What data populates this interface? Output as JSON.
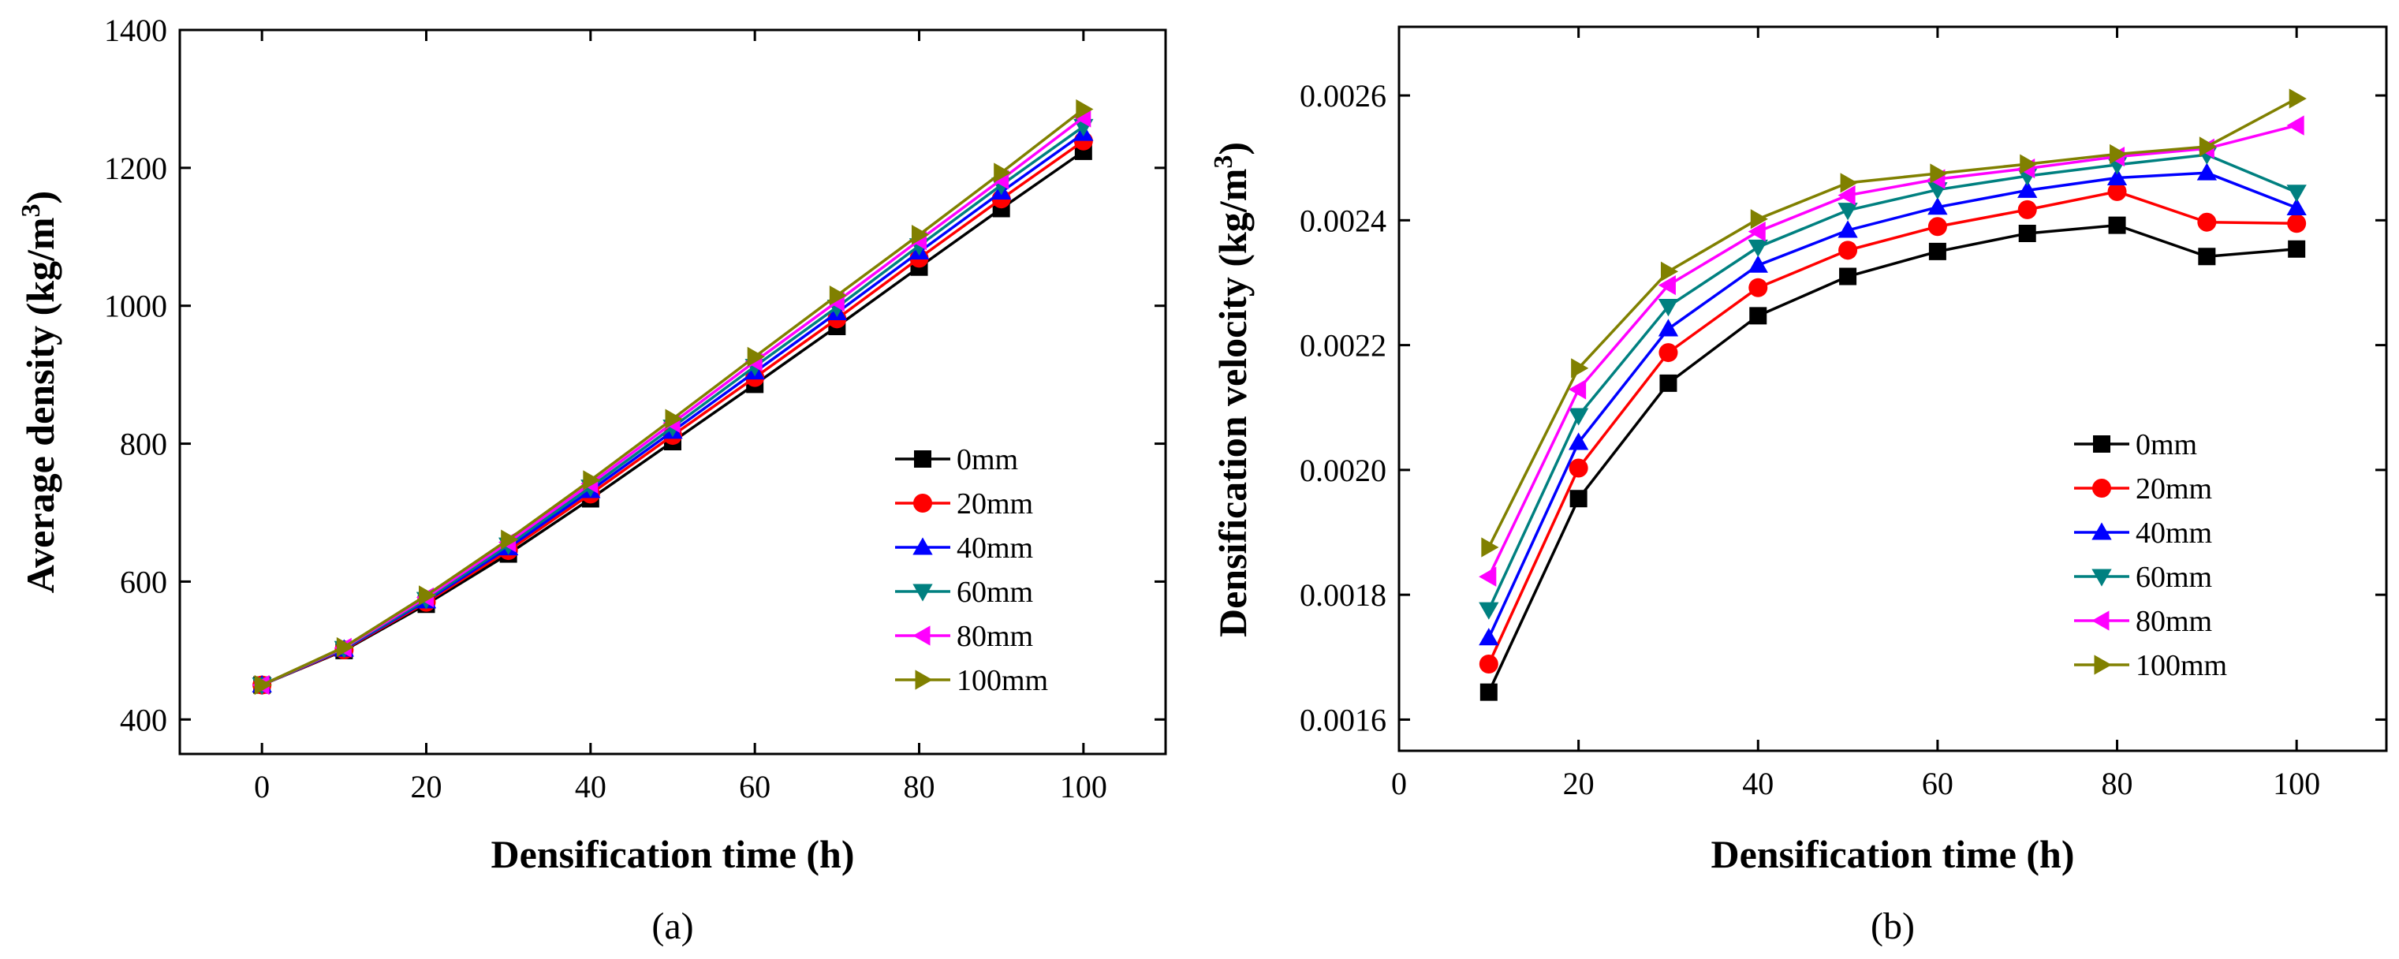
{
  "chart_data": [
    {
      "type": "line",
      "panel_label": "(a)",
      "title": "",
      "xlabel": "Densification time (h)",
      "ylabel": "Average density (kg/m",
      "ylabel_sup": "3",
      "ylabel_end": ")",
      "xlim": [
        -10,
        110
      ],
      "ylim": [
        350,
        1400
      ],
      "x_ticks": [
        0,
        20,
        40,
        60,
        80,
        100
      ],
      "y_ticks": [
        400,
        600,
        800,
        1000,
        1200,
        1400
      ],
      "x_tick_labels": [
        "0",
        "20",
        "40",
        "60",
        "80",
        "100"
      ],
      "y_tick_labels": [
        "400",
        "600",
        "800",
        "1000",
        "1200",
        "1400"
      ],
      "grid": false,
      "legend_position": "lower-right",
      "x": [
        0,
        10,
        20,
        30,
        40,
        50,
        60,
        70,
        80,
        90,
        100
      ],
      "series": [
        {
          "name": "0mm",
          "color": "#000000",
          "marker": "square",
          "values": [
            450,
            500,
            567,
            640,
            720,
            803,
            886,
            970,
            1056,
            1141,
            1224
          ]
        },
        {
          "name": "20mm",
          "color": "#ff0000",
          "marker": "circle",
          "values": [
            450,
            501,
            570,
            645,
            727,
            812,
            896,
            981,
            1069,
            1155,
            1239
          ]
        },
        {
          "name": "40mm",
          "color": "#0000ff",
          "marker": "triangle-up",
          "values": [
            450,
            502,
            572,
            649,
            732,
            818,
            904,
            990,
            1078,
            1165,
            1250
          ]
        },
        {
          "name": "60mm",
          "color": "#008080",
          "marker": "triangle-down",
          "values": [
            450,
            503,
            574,
            653,
            737,
            824,
            912,
            998,
            1087,
            1175,
            1260
          ]
        },
        {
          "name": "80mm",
          "color": "#ff00ff",
          "marker": "triangle-left",
          "values": [
            450,
            504,
            577,
            657,
            742,
            830,
            919,
            1006,
            1095,
            1183,
            1273
          ]
        },
        {
          "name": "100mm",
          "color": "#808000",
          "marker": "triangle-right",
          "values": [
            450,
            505,
            580,
            661,
            747,
            836,
            926,
            1015,
            1103,
            1193,
            1285
          ]
        }
      ]
    },
    {
      "type": "line",
      "panel_label": "(b)",
      "title": "",
      "xlabel": "Densification time (h)",
      "ylabel": "Densification velocity (kg/m",
      "ylabel_sup": "3",
      "ylabel_end": ")",
      "xlim": [
        0,
        110
      ],
      "ylim": [
        0.00155,
        0.00271
      ],
      "x_ticks": [
        0,
        20,
        40,
        60,
        80,
        100
      ],
      "y_ticks": [
        0.0016,
        0.0018,
        0.002,
        0.0022,
        0.0024,
        0.0026
      ],
      "x_tick_labels": [
        "0",
        "20",
        "40",
        "60",
        "80",
        "100"
      ],
      "y_tick_labels": [
        "0.0016",
        "0.0018",
        "0.0020",
        "0.0022",
        "0.0024",
        "0.0026"
      ],
      "grid": false,
      "legend_position": "lower-right",
      "x": [
        10,
        20,
        30,
        40,
        50,
        60,
        70,
        80,
        90,
        100
      ],
      "series": [
        {
          "name": "0mm",
          "color": "#000000",
          "marker": "square",
          "values": [
            0.001644,
            0.001954,
            0.002139,
            0.002247,
            0.00231,
            0.00235,
            0.002379,
            0.002392,
            0.002342,
            0.002354
          ]
        },
        {
          "name": "20mm",
          "color": "#ff0000",
          "marker": "circle",
          "values": [
            0.001689,
            0.002003,
            0.002188,
            0.002292,
            0.002352,
            0.00239,
            0.002417,
            0.002446,
            0.002397,
            0.002395
          ]
        },
        {
          "name": "40mm",
          "color": "#0000ff",
          "marker": "triangle-up",
          "values": [
            0.001731,
            0.002044,
            0.002226,
            0.002328,
            0.002384,
            0.002421,
            0.002448,
            0.002468,
            0.002476,
            0.00242
          ]
        },
        {
          "name": "60mm",
          "color": "#008080",
          "marker": "triangle-down",
          "values": [
            0.001776,
            0.002087,
            0.002262,
            0.002357,
            0.002416,
            0.002449,
            0.002471,
            0.002489,
            0.002505,
            0.002445
          ]
        },
        {
          "name": "80mm",
          "color": "#ff00ff",
          "marker": "triangle-left",
          "values": [
            0.001829,
            0.002129,
            0.002296,
            0.002382,
            0.00244,
            0.002466,
            0.002483,
            0.002502,
            0.002515,
            0.002552
          ]
        },
        {
          "name": "100mm",
          "color": "#808000",
          "marker": "triangle-right",
          "values": [
            0.001876,
            0.002163,
            0.002318,
            0.002402,
            0.00246,
            0.002475,
            0.00249,
            0.002506,
            0.002518,
            0.002595
          ]
        }
      ]
    }
  ]
}
